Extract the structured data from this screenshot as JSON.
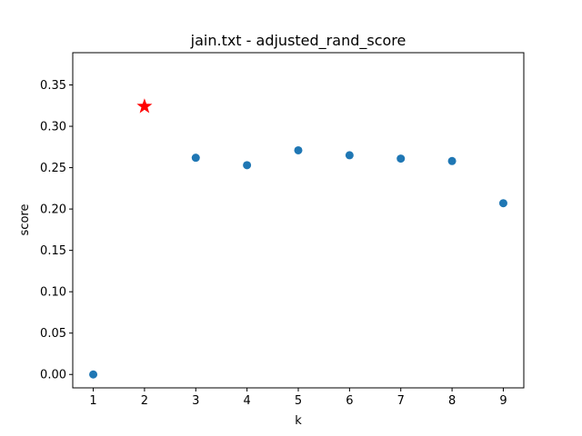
{
  "chart_data": {
    "type": "scatter",
    "title": "jain.txt - adjusted_rand_score",
    "xlabel": "k",
    "ylabel": "score",
    "x": [
      1,
      2,
      3,
      4,
      5,
      6,
      7,
      8,
      9
    ],
    "y": [
      0.0,
      0.324,
      0.262,
      0.253,
      0.271,
      0.265,
      0.261,
      0.258,
      0.207
    ],
    "xticks": [
      "1",
      "2",
      "3",
      "4",
      "5",
      "6",
      "7",
      "8",
      "9"
    ],
    "yticks": [
      "0.00",
      "0.05",
      "0.10",
      "0.15",
      "0.20",
      "0.25",
      "0.30",
      "0.35"
    ],
    "xlim": [
      0.6,
      9.4
    ],
    "ylim": [
      -0.0162,
      0.389
    ],
    "grid": false,
    "highlight": {
      "x": 2,
      "y": 0.324,
      "marker": "star",
      "color": "#ff0000"
    },
    "point_color": "#1f77b4"
  }
}
